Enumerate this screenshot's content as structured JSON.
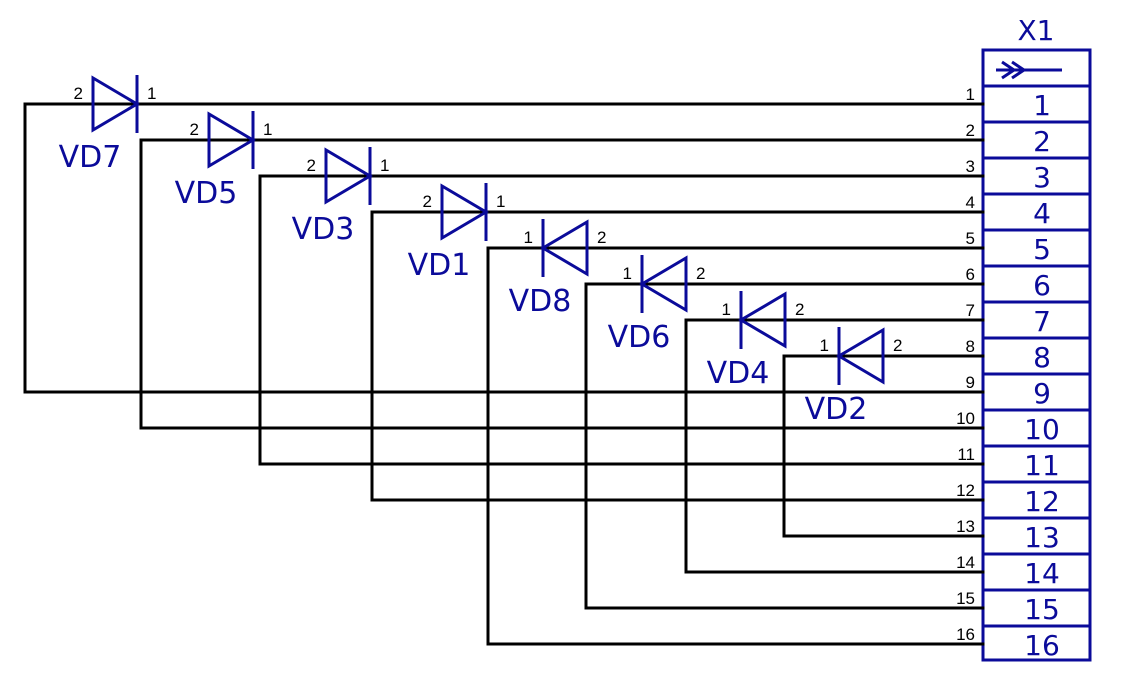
{
  "connector": {
    "refdes": "X1",
    "header_icon": "plug-arrow-icon",
    "pins": [
      "1",
      "2",
      "3",
      "4",
      "5",
      "6",
      "7",
      "8",
      "9",
      "10",
      "11",
      "12",
      "13",
      "14",
      "15",
      "16"
    ],
    "wire_pin_labels": [
      "1",
      "2",
      "3",
      "4",
      "5",
      "6",
      "7",
      "8",
      "9",
      "10",
      "11",
      "12",
      "13",
      "14",
      "15",
      "16"
    ]
  },
  "diodes": [
    {
      "refdes": "VD7",
      "pin_left": "2",
      "pin_right": "1",
      "direction": "right",
      "anode_pin": "9",
      "cathode_pin": "1"
    },
    {
      "refdes": "VD5",
      "pin_left": "2",
      "pin_right": "1",
      "direction": "right",
      "anode_pin": "10",
      "cathode_pin": "2"
    },
    {
      "refdes": "VD3",
      "pin_left": "2",
      "pin_right": "1",
      "direction": "right",
      "anode_pin": "11",
      "cathode_pin": "3"
    },
    {
      "refdes": "VD1",
      "pin_left": "2",
      "pin_right": "1",
      "direction": "right",
      "anode_pin": "12",
      "cathode_pin": "4"
    },
    {
      "refdes": "VD8",
      "pin_left": "1",
      "pin_right": "2",
      "direction": "left",
      "anode_pin": "5",
      "cathode_pin": "16"
    },
    {
      "refdes": "VD6",
      "pin_left": "1",
      "pin_right": "2",
      "direction": "left",
      "anode_pin": "6",
      "cathode_pin": "15"
    },
    {
      "refdes": "VD4",
      "pin_left": "1",
      "pin_right": "2",
      "direction": "left",
      "anode_pin": "7",
      "cathode_pin": "14"
    },
    {
      "refdes": "VD2",
      "pin_left": "1",
      "pin_right": "2",
      "direction": "left",
      "anode_pin": "8",
      "cathode_pin": "13"
    }
  ],
  "colors": {
    "symbol": "#0b0b9a",
    "wire": "#000000",
    "background": "#ffffff"
  }
}
